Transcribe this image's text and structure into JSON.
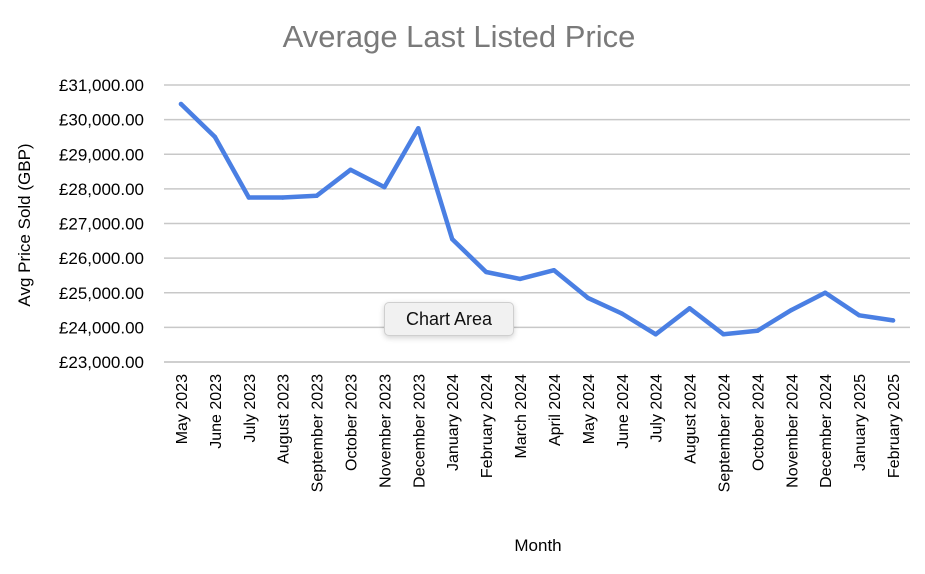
{
  "chart_data": {
    "type": "line",
    "title": "Average Last Listed Price",
    "xlabel": "Month",
    "ylabel": "Avg Price Sold (GBP)",
    "ylim": [
      23000,
      31000
    ],
    "yticks": [
      23000,
      24000,
      25000,
      26000,
      27000,
      28000,
      29000,
      30000,
      31000
    ],
    "ytick_labels": [
      "£23,000.00",
      "£24,000.00",
      "£25,000.00",
      "£26,000.00",
      "£27,000.00",
      "£28,000.00",
      "£29,000.00",
      "£30,000.00",
      "£31,000.00"
    ],
    "grid": true,
    "line_color": "#4a7fe3",
    "categories": [
      "May 2023",
      "June 2023",
      "July 2023",
      "August 2023",
      "September 2023",
      "October 2023",
      "November 2023",
      "December 2023",
      "January 2024",
      "February 2024",
      "March 2024",
      "April 2024",
      "May 2024",
      "June 2024",
      "July 2024",
      "August 2024",
      "September 2024",
      "October 2024",
      "November 2024",
      "December 2024",
      "January 2025",
      "February 2025"
    ],
    "series": [
      {
        "values": [
          30450,
          29500,
          27750,
          27750,
          27800,
          28550,
          28050,
          29750,
          26550,
          25600,
          25400,
          25650,
          24850,
          24400,
          23800,
          24550,
          23800,
          23900,
          24500,
          25000,
          24350,
          24200
        ]
      }
    ]
  },
  "tooltip": {
    "label": "Chart Area"
  }
}
